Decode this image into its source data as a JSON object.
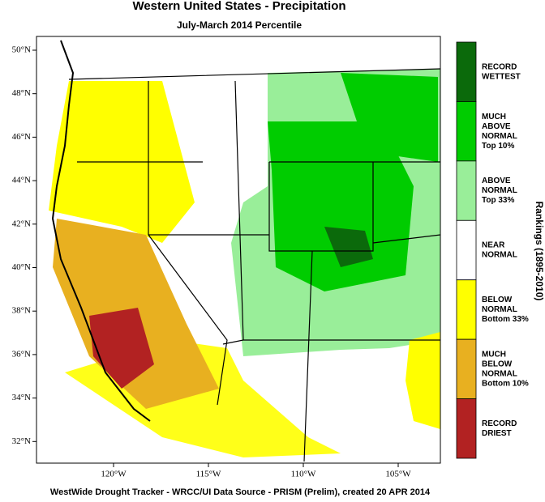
{
  "title": "Western United States - Precipitation",
  "subtitle": "July-March 2014 Percentile",
  "map": {
    "lat_labels": [
      "50°N",
      "48°N",
      "46°N",
      "44°N",
      "42°N",
      "40°N",
      "38°N",
      "36°N",
      "34°N",
      "32°N"
    ],
    "lon_labels": [
      "120°W",
      "115°W",
      "110°W",
      "105°W"
    ]
  },
  "legend": {
    "title": "Rankings (1895-2010)",
    "items": [
      {
        "lines": [
          "RECORD",
          "WETTEST"
        ],
        "color": "#0b6a0b"
      },
      {
        "lines": [
          "MUCH",
          "ABOVE",
          "NORMAL",
          "Top 10%"
        ],
        "color": "#00cc00"
      },
      {
        "lines": [
          "ABOVE",
          "NORMAL",
          "Top 33%"
        ],
        "color": "#99ee99"
      },
      {
        "lines": [
          "NEAR",
          "NORMAL"
        ],
        "color": "#ffffff"
      },
      {
        "lines": [
          "BELOW",
          "NORMAL",
          "Bottom 33%"
        ],
        "color": "#ffff00"
      },
      {
        "lines": [
          "MUCH",
          "BELOW",
          "NORMAL",
          "Bottom 10%"
        ],
        "color": "#e8b020"
      },
      {
        "lines": [
          "RECORD",
          "DRIEST"
        ],
        "color": "#b22222"
      }
    ]
  },
  "footer": "WestWide Drought Tracker - WRCC/UI  Data Source - PRISM (Prelim), created 20 APR 2014"
}
